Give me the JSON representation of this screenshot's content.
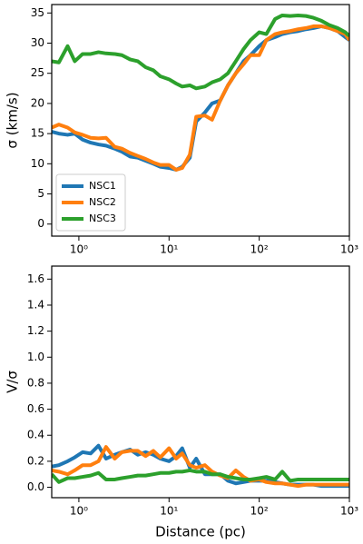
{
  "chart_data": [
    {
      "type": "line",
      "xscale": "log",
      "y_label": "σ (km/s)",
      "legend": "lower left",
      "x": [
        0.5,
        0.6,
        0.75,
        0.9,
        1.1,
        1.35,
        1.65,
        2,
        2.5,
        3,
        3.7,
        4.5,
        5.5,
        6.7,
        8,
        10,
        12,
        14,
        17,
        20,
        25,
        30,
        37,
        45,
        55,
        67,
        80,
        100,
        120,
        150,
        180,
        220,
        270,
        330,
        400,
        490,
        600,
        740,
        900,
        1000
      ],
      "xlim": [
        0.5,
        1000
      ],
      "xticks": [
        {
          "value": 1,
          "label": "10⁰"
        },
        {
          "value": 10,
          "label": "10¹"
        },
        {
          "value": 100,
          "label": "10²"
        },
        {
          "value": 1000,
          "label": "10³"
        }
      ],
      "ylim": [
        -2,
        36.4
      ],
      "yticks": [
        0,
        5,
        10,
        15,
        20,
        25,
        30,
        35
      ],
      "series": [
        {
          "name": "NSC1",
          "color": "#1f77b4",
          "values": [
            15.3,
            15,
            14.8,
            15,
            14,
            13.5,
            13.2,
            13,
            12.5,
            12,
            11.2,
            11,
            10.5,
            10,
            9.5,
            9.3,
            9,
            9.5,
            11,
            17,
            18.5,
            20,
            20.5,
            23,
            25,
            27,
            28,
            29.5,
            30.5,
            31,
            31.5,
            31.8,
            32,
            32.3,
            32.5,
            32.8,
            32.5,
            32,
            31,
            30.5
          ]
        },
        {
          "name": "NSC2",
          "color": "#ff7f0e",
          "values": [
            16,
            16.5,
            16,
            15.2,
            14.8,
            14.3,
            14.2,
            14.3,
            12.8,
            12.5,
            11.8,
            11.3,
            10.8,
            10.2,
            9.8,
            9.8,
            9,
            9.3,
            11.5,
            17.8,
            18,
            17.3,
            20.5,
            23,
            25,
            26.5,
            28,
            28,
            30.5,
            31.5,
            31.8,
            32,
            32.3,
            32.5,
            32.8,
            32.8,
            32.5,
            32,
            31.5,
            30.5
          ]
        },
        {
          "name": "NSC3",
          "color": "#2ca02c",
          "values": [
            27,
            26.8,
            29.5,
            27,
            28.2,
            28.2,
            28.5,
            28.3,
            28.2,
            28,
            27.3,
            27,
            26,
            25.5,
            24.5,
            24,
            23.3,
            22.8,
            23,
            22.5,
            22.8,
            23.5,
            24,
            25,
            27,
            29,
            30.5,
            31.8,
            31.5,
            34,
            34.6,
            34.5,
            34.6,
            34.5,
            34.2,
            33.7,
            33,
            32.5,
            31.8,
            31.2
          ]
        }
      ]
    },
    {
      "type": "line",
      "xscale": "log",
      "y_label": "V/σ",
      "x_label": "Distance (pc)",
      "x": [
        0.5,
        0.6,
        0.75,
        0.9,
        1.1,
        1.35,
        1.65,
        2,
        2.5,
        3,
        3.7,
        4.5,
        5.5,
        6.7,
        8,
        10,
        12,
        14,
        17,
        20,
        25,
        30,
        37,
        45,
        55,
        67,
        80,
        100,
        120,
        150,
        180,
        220,
        270,
        330,
        400,
        490,
        600,
        740,
        900,
        1000
      ],
      "xlim": [
        0.5,
        1000
      ],
      "xticks": [
        {
          "value": 1,
          "label": "10⁰"
        },
        {
          "value": 10,
          "label": "10¹"
        },
        {
          "value": 100,
          "label": "10²"
        },
        {
          "value": 1000,
          "label": "10³"
        }
      ],
      "ylim": [
        -0.08,
        1.7
      ],
      "yticks": [
        {
          "value": 0,
          "label": "0.0"
        },
        0.2,
        0.4,
        0.6,
        0.8,
        {
          "value": 1,
          "label": "1.0"
        },
        1.2,
        1.4,
        1.6
      ],
      "series": [
        {
          "color": "#1f77b4",
          "values": [
            0.16,
            0.17,
            0.2,
            0.23,
            0.27,
            0.26,
            0.32,
            0.22,
            0.25,
            0.27,
            0.29,
            0.25,
            0.27,
            0.25,
            0.22,
            0.2,
            0.24,
            0.3,
            0.15,
            0.22,
            0.1,
            0.1,
            0.1,
            0.05,
            0.03,
            0.04,
            0.05,
            0.05,
            0.05,
            0.04,
            0.03,
            0.02,
            0.02,
            0.02,
            0.02,
            0.01,
            0.01,
            0.01,
            0.01,
            0.01
          ]
        },
        {
          "color": "#ff7f0e",
          "values": [
            0.13,
            0.12,
            0.1,
            0.13,
            0.17,
            0.17,
            0.2,
            0.31,
            0.22,
            0.27,
            0.28,
            0.28,
            0.24,
            0.28,
            0.23,
            0.3,
            0.22,
            0.26,
            0.17,
            0.15,
            0.17,
            0.12,
            0.09,
            0.07,
            0.13,
            0.08,
            0.05,
            0.06,
            0.04,
            0.03,
            0.03,
            0.02,
            0.01,
            0.02,
            0.02,
            0.02,
            0.02,
            0.02,
            0.02,
            0.02
          ]
        },
        {
          "color": "#2ca02c",
          "values": [
            0.1,
            0.04,
            0.07,
            0.07,
            0.08,
            0.09,
            0.11,
            0.06,
            0.06,
            0.07,
            0.08,
            0.09,
            0.09,
            0.1,
            0.11,
            0.11,
            0.12,
            0.12,
            0.13,
            0.12,
            0.12,
            0.1,
            0.1,
            0.08,
            0.07,
            0.06,
            0.06,
            0.07,
            0.08,
            0.06,
            0.12,
            0.05,
            0.06,
            0.06,
            0.06,
            0.06,
            0.06,
            0.06,
            0.06,
            0.06
          ]
        }
      ]
    }
  ]
}
